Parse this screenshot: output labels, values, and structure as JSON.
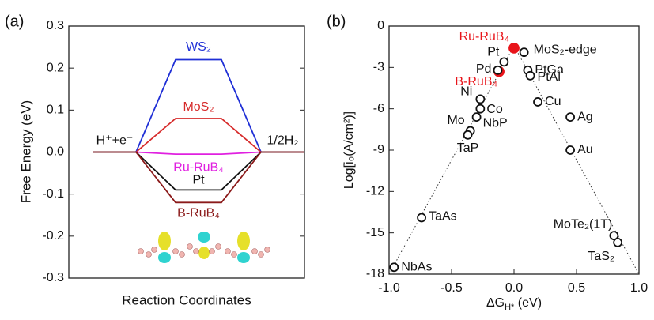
{
  "chart_data": [
    {
      "type": "energy",
      "title": "(a)",
      "xlabel": "Reaction Coordinates",
      "ylabel": "Free Energy (eV)",
      "categories": [
        "H⁺+e⁻",
        null,
        "1/2H₂"
      ],
      "ylim": [
        -0.3,
        0.3
      ],
      "yticks": [
        -0.3,
        -0.2,
        -0.1,
        {
          "value": 0,
          "label": "0.0"
        },
        0.1,
        0.2,
        0.3
      ],
      "series": [
        {
          "name": "WS₂",
          "color": "#1f2fd6",
          "values": [
            0,
            0.22,
            0
          ]
        },
        {
          "name": "MoS₂",
          "color": "#d62a2a",
          "values": [
            0,
            0.08,
            0
          ]
        },
        {
          "name": "Ru-RuB₄",
          "color": "#e020e0",
          "values": [
            0,
            -0.005,
            0
          ]
        },
        {
          "name": "Pt",
          "color": "#111111",
          "values": [
            0,
            -0.09,
            0
          ]
        },
        {
          "name": "B-RuB₄",
          "color": "#8b1a1a",
          "values": [
            0,
            -0.12,
            0
          ]
        }
      ]
    },
    {
      "type": "scatter",
      "title": "(b)",
      "xlabel": [
        "ΔG",
        "H*",
        " (eV)"
      ],
      "ylabel": "Log[i₀(A/cm²)]",
      "xlim": [
        -1,
        1
      ],
      "ylim": [
        -18,
        0
      ],
      "xticks": [
        {
          "value": -1,
          "label": "-1.0"
        },
        -0.5,
        {
          "value": 0,
          "label": "0.0"
        },
        0.5,
        {
          "value": 1,
          "label": "1.0"
        }
      ],
      "yticks": [
        0,
        -3,
        -6,
        -9,
        -12,
        -15,
        -18
      ],
      "points": [
        {
          "label": "Ru-RuB₄",
          "x": 0,
          "y": -1.6,
          "color": "#e8141a"
        },
        {
          "label": "B-RuB₄",
          "x": -0.12,
          "y": -3.3,
          "color": "#e8141a"
        },
        {
          "label": "MoS₂-edge",
          "x": 0.08,
          "y": -1.9,
          "color": "#111111"
        },
        {
          "label": "Pt",
          "x": -0.08,
          "y": -2.6,
          "color": "#111111"
        },
        {
          "label": "Pd",
          "x": -0.13,
          "y": -3.2,
          "color": "#111111"
        },
        {
          "label": "PtGa",
          "x": 0.11,
          "y": -3.2,
          "color": "#111111"
        },
        {
          "label": "PtAl",
          "x": 0.13,
          "y": -3.6,
          "color": "#111111"
        },
        {
          "label": "Ni",
          "x": -0.27,
          "y": -5.3,
          "color": "#111111"
        },
        {
          "label": "Co",
          "x": -0.27,
          "y": -6.0,
          "color": "#111111"
        },
        {
          "label": "Cu",
          "x": 0.19,
          "y": -5.5,
          "color": "#111111"
        },
        {
          "label": "NbP",
          "x": -0.3,
          "y": -6.6,
          "color": "#111111"
        },
        {
          "label": "Mo",
          "x": -0.35,
          "y": -7.6,
          "color": "#111111"
        },
        {
          "label": "TaP",
          "x": -0.37,
          "y": -7.9,
          "color": "#111111"
        },
        {
          "label": "Ag",
          "x": 0.45,
          "y": -6.6,
          "color": "#111111"
        },
        {
          "label": "Au",
          "x": 0.45,
          "y": -9.0,
          "color": "#111111"
        },
        {
          "label": "TaAs",
          "x": -0.74,
          "y": -13.9,
          "color": "#111111"
        },
        {
          "label": "MoTe₂(1T)",
          "x": 0.8,
          "y": -15.2,
          "color": "#111111"
        },
        {
          "label": "TaS₂",
          "x": 0.83,
          "y": -15.7,
          "color": "#111111"
        },
        {
          "label": "NbAs",
          "x": -0.96,
          "y": -17.5,
          "color": "#111111"
        }
      ]
    }
  ]
}
